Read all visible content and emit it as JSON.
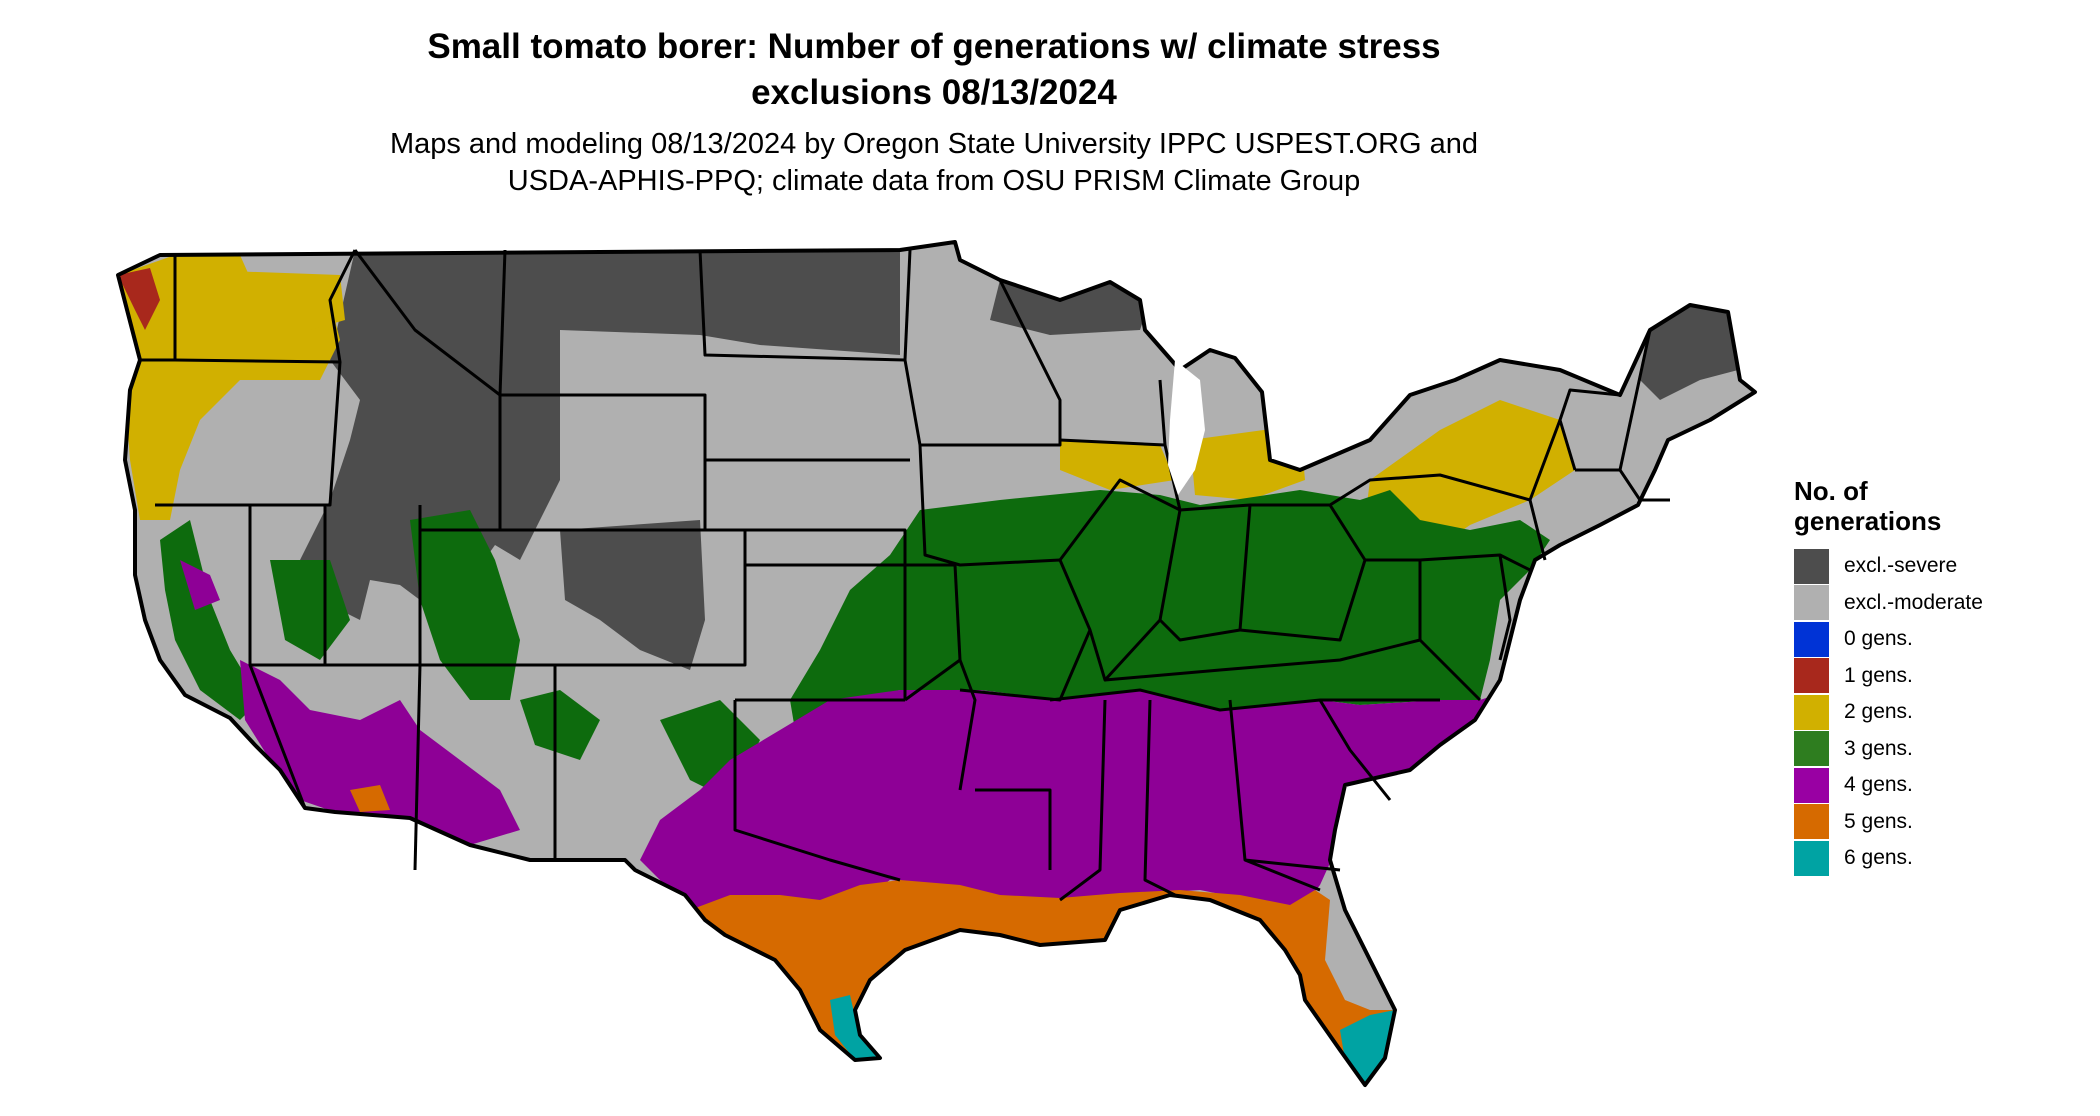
{
  "title": {
    "line1": "Small tomato borer: Number of generations w/ climate stress",
    "line2": "exclusions 08/13/2024"
  },
  "subtitle": {
    "line1": "Maps and modeling 08/13/2024 by Oregon State University IPPC USPEST.ORG and",
    "line2": "USDA-APHIS-PPQ; climate data from OSU PRISM Climate Group"
  },
  "legend": {
    "title_line1": "No. of",
    "title_line2": "generations",
    "items": [
      {
        "label": "excl.-severe",
        "color": "#4d4d4d"
      },
      {
        "label": "excl.-moderate",
        "color": "#b0b0b0"
      },
      {
        "label": "0 gens.",
        "color": "#0033d6"
      },
      {
        "label": "1 gens.",
        "color": "#a8281c"
      },
      {
        "label": "2 gens.",
        "color": "#d1b000"
      },
      {
        "label": "3 gens.",
        "color": "#2e7d1f"
      },
      {
        "label": "4 gens.",
        "color": "#9900a3"
      },
      {
        "label": "5 gens.",
        "color": "#d66a00"
      },
      {
        "label": "6 gens.",
        "color": "#00a3a3"
      }
    ]
  },
  "map": {
    "region": "contiguous United States",
    "colors": {
      "severe": "#4d4d4d",
      "moderate": "#b0b0b0",
      "two": "#d1b000",
      "three": "#0d6b0d",
      "four": "#8e0096",
      "five": "#d66a00",
      "six": "#00a3a3",
      "one": "#a8281c",
      "boundary": "#000000"
    }
  }
}
